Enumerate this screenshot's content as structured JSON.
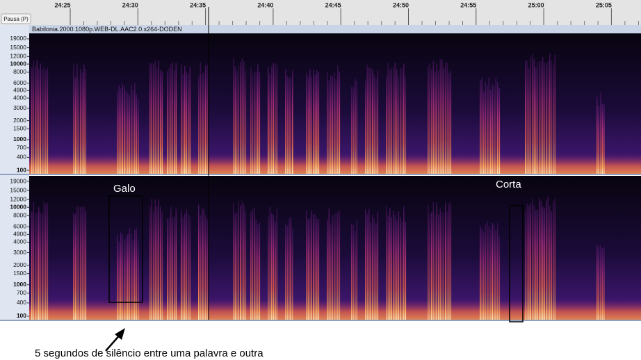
{
  "toolbar": {
    "pause_button": "Pausa (P)"
  },
  "ruler": {
    "labels": [
      "24:25",
      "24:30",
      "24:35",
      "24:40",
      "24:45",
      "24:50",
      "24:55",
      "25:00",
      "25:05"
    ]
  },
  "track": {
    "name": "Babilonia.2000.1080p.WEB-DL.AAC2.0.x264-DODEN",
    "axis_labels": [
      "19000",
      "15000",
      "12000",
      "10000",
      "8000",
      "6000",
      "4900",
      "4000",
      "3000",
      "2000",
      "1500",
      "1000",
      "700",
      "400",
      "100"
    ]
  },
  "annotations": {
    "galo": "Galo",
    "corta": "Corta",
    "caption": "5 segundos de silêncio entre uma palavra e outra"
  }
}
